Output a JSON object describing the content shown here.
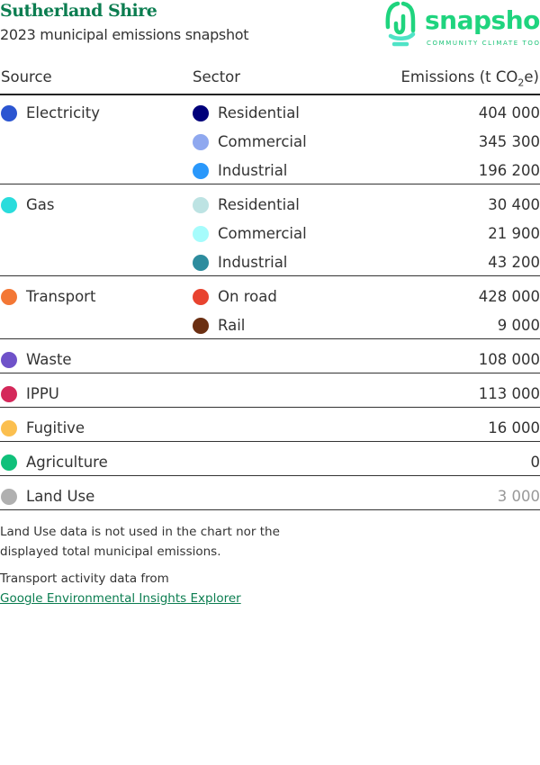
{
  "header": {
    "title": "Sutherland Shire",
    "subtitle": "2023 municipal emissions snapshot"
  },
  "logo": {
    "word": "snapshot",
    "tagline": "COMMUNITY CLIMATE TOOL",
    "color": "#1fd47e"
  },
  "table": {
    "columns": [
      "Source",
      "Sector",
      "Emissions (t CO",
      "2",
      "e)"
    ],
    "groups": [
      {
        "source": "Electricity",
        "color": "#2b55d1",
        "sectors": [
          {
            "name": "Residential",
            "color": "#00007a",
            "value": "404 000"
          },
          {
            "name": "Commercial",
            "color": "#8fa8ef",
            "value": "345 300"
          },
          {
            "name": "Industrial",
            "color": "#2a98fb",
            "value": "196 200"
          }
        ]
      },
      {
        "source": "Gas",
        "color": "#2adcdc",
        "sectors": [
          {
            "name": "Residential",
            "color": "#bde3e3",
            "value": "30 400"
          },
          {
            "name": "Commercial",
            "color": "#a6fcfc",
            "value": "21 900"
          },
          {
            "name": "Industrial",
            "color": "#2d8c9e",
            "value": "43 200"
          }
        ]
      },
      {
        "source": "Transport",
        "color": "#f37735",
        "sectors": [
          {
            "name": "On road",
            "color": "#e8432f",
            "value": "428 000"
          },
          {
            "name": "Rail",
            "color": "#6b2f12",
            "value": "9 000"
          }
        ]
      },
      {
        "source": "Waste",
        "color": "#6f52c9",
        "value": "108 000"
      },
      {
        "source": "IPPU",
        "color": "#d4285a",
        "value": "113 000"
      },
      {
        "source": "Fugitive",
        "color": "#fbbf4f",
        "value": "16 000"
      },
      {
        "source": "Agriculture",
        "color": "#10c07a",
        "value": "0"
      },
      {
        "source": "Land Use",
        "color": "#b0b0b0",
        "value": "3 000",
        "muted": true
      }
    ]
  },
  "notes": {
    "land_use_1": "Land Use data is not used in the chart nor the",
    "land_use_2": "displayed total municipal emissions.",
    "transport": "Transport activity data from",
    "link": "Google Environmental Insights Explorer"
  }
}
